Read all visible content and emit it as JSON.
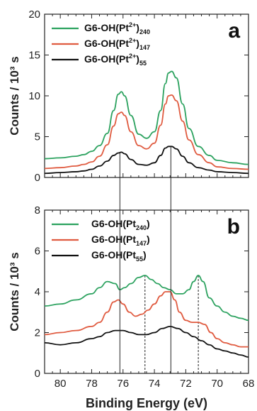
{
  "chart_data": [
    {
      "type": "line",
      "panel_label": "a",
      "xlim": [
        81,
        68
      ],
      "ylim": [
        0,
        20
      ],
      "yticks": [
        0,
        5,
        10,
        15,
        20
      ],
      "ylabel": "Counts / 10³ s",
      "legend_position": "top-left",
      "legend": [
        {
          "base": "G6-OH(Pt",
          "sup": "2+",
          "post": ")",
          "sub": "240",
          "color": "#2ca25f"
        },
        {
          "base": "G6-OH(Pt",
          "sup": "2+",
          "post": ")",
          "sub": "147",
          "color": "#e05b40"
        },
        {
          "base": "G6-OH(Pt",
          "sup": "2+",
          "post": ")",
          "sub": "55",
          "color": "#111111"
        }
      ],
      "series": [
        {
          "name": "G6-OH(Pt2+)240",
          "color": "#2ca25f",
          "x": [
            81,
            80,
            79,
            78.5,
            78,
            77.5,
            77,
            76.6,
            76.3,
            76.1,
            75.9,
            75.5,
            75,
            74.5,
            74,
            73.6,
            73.3,
            73.1,
            72.9,
            72.6,
            72.2,
            71.8,
            71.2,
            70.5,
            70,
            69,
            68
          ],
          "y": [
            2.3,
            2.4,
            2.6,
            2.8,
            3.2,
            3.9,
            5.4,
            8.2,
            10.2,
            10.5,
            10.0,
            7.6,
            5.3,
            4.8,
            5.6,
            8.2,
            11.5,
            12.8,
            13.0,
            12.2,
            9.0,
            6.0,
            3.8,
            2.7,
            2.1,
            1.8,
            1.6
          ]
        },
        {
          "name": "G6-OH(Pt2+)147",
          "color": "#e05b40",
          "x": [
            81,
            80,
            79,
            78.5,
            78,
            77.5,
            77,
            76.6,
            76.3,
            76.1,
            75.9,
            75.5,
            75,
            74.5,
            74,
            73.6,
            73.3,
            73.1,
            72.9,
            72.6,
            72.2,
            71.8,
            71.2,
            70.5,
            70,
            69,
            68
          ],
          "y": [
            1.1,
            1.2,
            1.4,
            1.6,
            1.9,
            2.6,
            4.0,
            6.3,
            7.8,
            8.0,
            7.6,
            5.6,
            3.9,
            3.5,
            4.2,
            6.4,
            9.0,
            10.0,
            10.1,
            9.4,
            6.9,
            4.6,
            2.8,
            1.8,
            1.3,
            1.1,
            1.0
          ]
        },
        {
          "name": "G6-OH(Pt2+)55",
          "color": "#111111",
          "x": [
            81,
            80,
            79,
            78.5,
            78,
            77.5,
            77,
            76.6,
            76.3,
            76.1,
            75.9,
            75.5,
            75,
            74.5,
            74,
            73.6,
            73.3,
            73.1,
            72.9,
            72.6,
            72.2,
            71.8,
            71.2,
            70.5,
            70,
            69,
            68
          ],
          "y": [
            0.5,
            0.6,
            0.7,
            0.8,
            1.0,
            1.4,
            2.0,
            2.7,
            3.0,
            3.1,
            2.9,
            2.2,
            1.6,
            1.5,
            1.8,
            2.7,
            3.6,
            3.8,
            3.8,
            3.5,
            2.6,
            1.8,
            1.2,
            0.9,
            0.7,
            0.6,
            0.5
          ]
        }
      ]
    },
    {
      "type": "line",
      "panel_label": "b",
      "xlim": [
        81,
        68
      ],
      "ylim": [
        0,
        8
      ],
      "xticks": [
        80,
        78,
        76,
        74,
        72,
        70,
        68
      ],
      "yticks": [
        0,
        2,
        4,
        6,
        8
      ],
      "xlabel": "Binding Energy (eV)",
      "ylabel": "Counts / 10³ s",
      "legend_position": "top-center",
      "legend": [
        {
          "base": "G6-OH(Pt",
          "sup": "",
          "post": ")",
          "sub": "240",
          "color": "#2ca25f",
          "subFirst": true
        },
        {
          "base": "G6-OH(Pt",
          "sup": "",
          "post": ")",
          "sub": "147",
          "color": "#e05b40",
          "subFirst": true
        },
        {
          "base": "G6-OH(Pt",
          "sup": "",
          "post": ")",
          "sub": "55",
          "color": "#111111",
          "subFirst": true
        }
      ],
      "dashed_lines_x": [
        74.6,
        71.2
      ],
      "series": [
        {
          "name": "G6-OH(Pt)240",
          "color": "#2ca25f",
          "x": [
            81,
            80,
            79,
            78,
            77.5,
            77,
            76.5,
            76.2,
            75.9,
            75.5,
            75.0,
            74.6,
            74.2,
            73.8,
            73.4,
            73.0,
            72.6,
            72.2,
            71.8,
            71.5,
            71.2,
            70.9,
            70.5,
            70,
            69.5,
            69,
            68.5,
            68
          ],
          "y": [
            3.3,
            3.4,
            3.6,
            3.9,
            4.2,
            4.5,
            4.4,
            4.1,
            4.2,
            4.4,
            4.7,
            4.8,
            4.6,
            4.4,
            4.2,
            4.1,
            3.9,
            3.9,
            4.1,
            4.5,
            4.8,
            4.5,
            3.7,
            3.3,
            3.0,
            2.8,
            2.7,
            2.6
          ]
        },
        {
          "name": "G6-OH(Pt)147",
          "color": "#e05b40",
          "x": [
            81,
            80,
            79,
            78,
            77.5,
            77,
            76.6,
            76.3,
            76.0,
            75.6,
            75.2,
            74.8,
            74.4,
            74.0,
            73.6,
            73.3,
            73.0,
            72.7,
            72.4,
            72.0,
            71.6,
            71.2,
            70.8,
            70.4,
            70,
            69.5,
            69,
            68.5,
            68
          ],
          "y": [
            1.9,
            2.0,
            2.1,
            2.3,
            2.5,
            3.0,
            3.5,
            3.6,
            3.4,
            3.0,
            2.8,
            2.9,
            3.1,
            3.4,
            3.8,
            4.0,
            4.0,
            3.6,
            3.0,
            2.6,
            2.5,
            2.5,
            2.4,
            2.0,
            1.7,
            1.5,
            1.4,
            1.3,
            1.3
          ]
        },
        {
          "name": "G6-OH(Pt)55",
          "color": "#111111",
          "x": [
            81,
            80,
            79,
            78,
            77.5,
            77,
            76.5,
            76.0,
            75.5,
            75.0,
            74.5,
            74.0,
            73.5,
            73.0,
            72.5,
            72.0,
            71.5,
            71.0,
            70.5,
            70,
            69.5,
            69,
            68.5,
            68
          ],
          "y": [
            1.5,
            1.4,
            1.5,
            1.7,
            1.8,
            2.0,
            2.1,
            2.1,
            2.0,
            1.9,
            1.9,
            2.0,
            2.2,
            2.3,
            2.2,
            2.0,
            1.8,
            1.6,
            1.4,
            1.2,
            1.1,
            1.0,
            0.9,
            0.8
          ]
        }
      ]
    }
  ],
  "shared_solid_lines_x": [
    76.2,
    72.95
  ]
}
